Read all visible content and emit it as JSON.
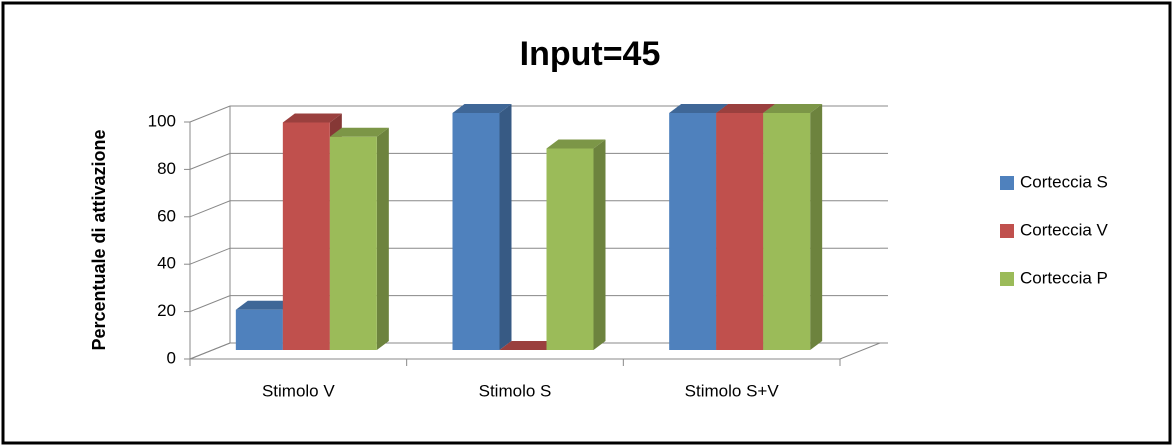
{
  "chart_data": {
    "type": "bar3d",
    "title": "Input=45",
    "ylabel": "Percentuale di attivazione",
    "categories": [
      "Stimolo V",
      "Stimolo S",
      "Stimolo S+V"
    ],
    "series": [
      {
        "name": "Corteccia S",
        "color": "#4f81bd",
        "values": [
          17,
          100,
          100
        ]
      },
      {
        "name": "Corteccia V",
        "color": "#c0504d",
        "values": [
          96,
          0,
          100
        ]
      },
      {
        "name": "Corteccia P",
        "color": "#9bbb59",
        "values": [
          90,
          85,
          100
        ]
      }
    ],
    "ylim": [
      0,
      100
    ],
    "yticks": [
      0,
      20,
      40,
      60,
      80,
      100
    ],
    "grid": true,
    "legend": "right"
  }
}
